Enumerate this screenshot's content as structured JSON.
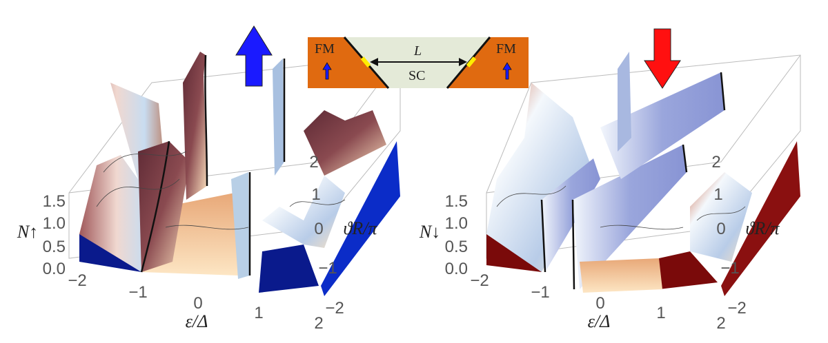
{
  "chart_data": [
    {
      "type": "surface",
      "zlabel": "N↑",
      "xlabel": "ε/Δ",
      "ylabel": "ϑR/π",
      "x_ticks": [
        "−2",
        "−1",
        "0",
        "1",
        "2"
      ],
      "y_ticks": [
        "−2",
        "−1",
        "0",
        "1",
        "2"
      ],
      "z_ticks": [
        "0.0",
        "0.5",
        "1.0",
        "1.5"
      ],
      "xlim": [
        -2,
        2
      ],
      "ylim": [
        -2,
        2
      ],
      "zlim": [
        0,
        1.5
      ],
      "spin_arrow": "up",
      "colors": {
        "base": "#0a1a8c",
        "spin_arrow": "#1a1aff",
        "surface_dark": "#7a3a44",
        "surface_light": "#fde3c0",
        "surface_cool": "#c8dcf0"
      }
    },
    {
      "type": "surface",
      "zlabel": "N↓",
      "xlabel": "ε/Δ",
      "ylabel": "ϑR/π",
      "x_ticks": [
        "−2",
        "−1",
        "0",
        "1",
        "2"
      ],
      "y_ticks": [
        "−2",
        "−1",
        "0",
        "1",
        "2"
      ],
      "z_ticks": [
        "0.0",
        "0.5",
        "1.0",
        "1.5"
      ],
      "xlim": [
        -2,
        2
      ],
      "ylim": [
        -2,
        2
      ],
      "zlim": [
        0,
        1.5
      ],
      "spin_arrow": "down",
      "colors": {
        "base": "#7a0a0a",
        "spin_arrow": "#ff1010",
        "surface_dark": "#8f9bd8",
        "surface_light": "#fde3c0",
        "surface_cool": "#d8e6f6"
      }
    }
  ],
  "inset": {
    "left_label": "FM",
    "right_label": "FM",
    "length_label": "L",
    "middle_label": "SC",
    "colors": {
      "ferromagnet": "#e06a10",
      "superconductor": "#e4ead8",
      "interface": "#ffee00",
      "arrow": "#1a1aff"
    }
  }
}
